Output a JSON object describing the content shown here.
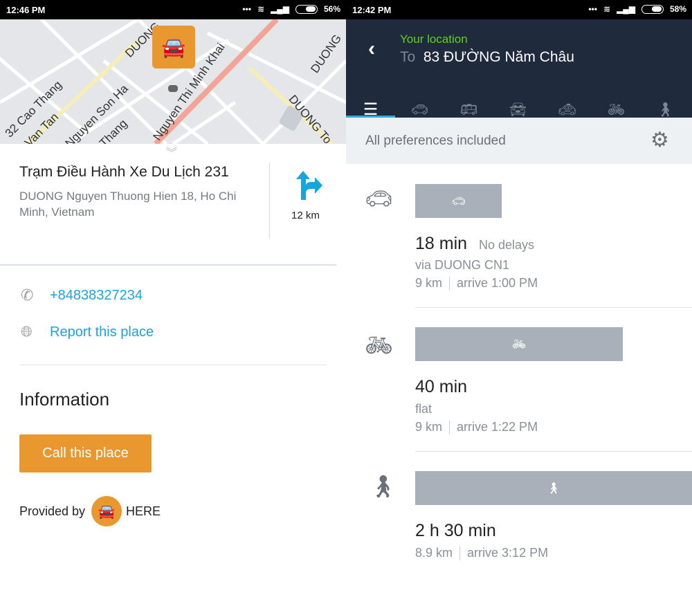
{
  "left": {
    "status": {
      "time": "12:46 PM",
      "battery": "56%"
    },
    "map": {
      "streets": [
        "DUONG",
        "32 Cao Thang",
        "Van Tan",
        "Nguyen Son Ha",
        "Thang",
        "Nguyen Thi Minh Khai",
        "DUONG",
        "DUONG To"
      ]
    },
    "place": {
      "name": "Trạm Điều Hành Xe Du Lịch 231",
      "address": "DUONG Nguyen Thuong Hien 18, Ho Chi Minh, Vietnam",
      "distance": "12 km"
    },
    "phone": "+84838327234",
    "report": "Report this place",
    "info_heading": "Information",
    "call_button": "Call this place",
    "provided_by": "Provided by",
    "provider": "HERE",
    "accent": "#e8982f"
  },
  "right": {
    "status": {
      "time": "12:42 PM",
      "battery": "58%"
    },
    "from": "Your location",
    "to_label": "To",
    "to": "83 ĐƯỜNG Năm Châu",
    "tabs": [
      "list",
      "car",
      "transit",
      "car-share",
      "taxi",
      "bike",
      "walk"
    ],
    "preferences": "All preferences included",
    "routes": [
      {
        "mode": "car",
        "duration": "18 min",
        "delay": "No delays",
        "via": "via DUONG CN1",
        "distance": "9 km",
        "arrive": "arrive 1:00 PM"
      },
      {
        "mode": "bike",
        "duration": "40 min",
        "via": "flat",
        "distance": "9 km",
        "arrive": "arrive 1:22 PM"
      },
      {
        "mode": "walk",
        "duration": "2 h 30 min",
        "distance": "8.9 km",
        "arrive": "arrive 3:12 PM"
      }
    ]
  }
}
